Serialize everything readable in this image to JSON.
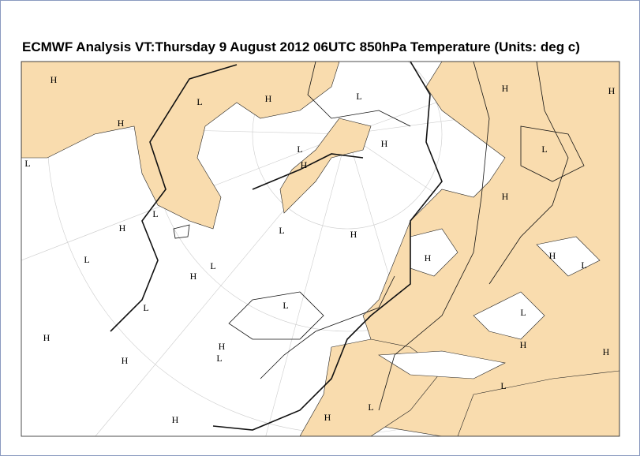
{
  "header": {
    "title": "ECMWF  Analysis VT:Thursday 9 August 2012 06UTC 850hPa Temperature (Units: deg c)"
  },
  "map": {
    "pressure_labels": [
      "H",
      "H",
      "L",
      "H",
      "L",
      "H",
      "H",
      "L",
      "L",
      "H",
      "H",
      "L",
      "L",
      "H",
      "L",
      "H",
      "L",
      "L",
      "H",
      "H",
      "H",
      "H",
      "L",
      "L",
      "L",
      "L",
      "H",
      "H",
      "H",
      "L",
      "H",
      "H",
      "L",
      "L",
      "H",
      "H"
    ]
  }
}
